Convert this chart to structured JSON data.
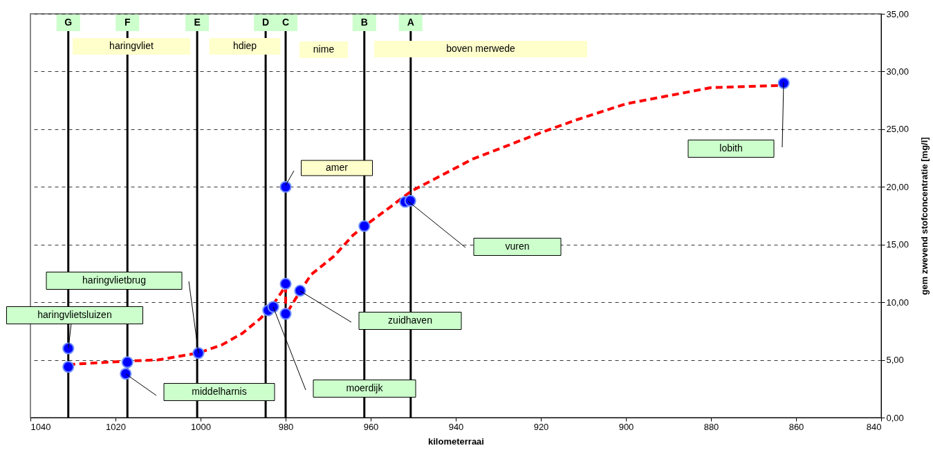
{
  "chart_data": {
    "type": "scatter",
    "xlabel": "kilometerraai",
    "ylabel": "gem zwevend stofconcentratie [mg/l]",
    "xlim": [
      1040,
      840
    ],
    "xticks": [
      1040,
      1020,
      1000,
      980,
      960,
      940,
      920,
      900,
      880,
      860,
      840
    ],
    "ylim": [
      0,
      35
    ],
    "yticks": [
      {
        "value": 0,
        "label": "0,00"
      },
      {
        "value": 5,
        "label": "5,00"
      },
      {
        "value": 10,
        "label": "10,00"
      },
      {
        "value": 15,
        "label": "15,00"
      },
      {
        "value": 20,
        "label": "20,00"
      },
      {
        "value": 25,
        "label": "25,00"
      },
      {
        "value": 30,
        "label": "30,00"
      },
      {
        "value": 35,
        "label": "35,00"
      }
    ],
    "grid": "y",
    "series": [
      {
        "marker": "circle",
        "color": "#0000ff",
        "x": [
          1031.1,
          1031.1,
          1017.2,
          1017.6,
          1000.5,
          984.1,
          982.9,
          980,
          980,
          980,
          976.6,
          961.5,
          951.9,
          950.7,
          862.9
        ],
        "values": [
          6.0,
          4.4,
          4.8,
          3.8,
          5.6,
          9.3,
          9.6,
          11.6,
          9.0,
          20.0,
          11.0,
          16.6,
          18.7,
          18.8,
          29.0
        ]
      },
      {
        "type": "line",
        "color": "#ff0000",
        "line_style": "dashed",
        "x": [
          1031.1,
          1017.2,
          1010,
          1000.5,
          995,
          990.2,
          985.9,
          983.3,
          980,
          980,
          976.5,
          974,
          968.6,
          964.2,
          961.5,
          955.6,
          950.6,
          936.1,
          920,
          911.7,
          900,
          880,
          862.9
        ],
        "values": [
          4.6,
          4.9,
          5.0,
          5.6,
          6.3,
          7.3,
          8.6,
          9.6,
          11.4,
          8.9,
          11.0,
          12.4,
          14.0,
          15.8,
          16.6,
          18.2,
          19.6,
          22.4,
          24.7,
          25.8,
          27.2,
          28.6,
          28.8
        ]
      }
    ],
    "ref_lines": [
      {
        "axis": "x",
        "value": 1031.1,
        "label": "G",
        "color": "#000000"
      },
      {
        "axis": "x",
        "value": 1017.2,
        "label": "F",
        "color": "#000000"
      },
      {
        "axis": "x",
        "value": 1000.8,
        "label": "E",
        "color": "#000000"
      },
      {
        "axis": "x",
        "value": 984.7,
        "label": "D",
        "color": "#000000"
      },
      {
        "axis": "x",
        "value": 980,
        "label": "C",
        "color": "#000000"
      },
      {
        "axis": "x",
        "value": 961.5,
        "label": "B",
        "color": "#000000"
      },
      {
        "axis": "x",
        "value": 950.6,
        "label": "A",
        "color": "#000000"
      }
    ],
    "annotations": [
      "haringvliet",
      "hdiep",
      "nime",
      "boven merwede",
      "haringvlietsluizen",
      "haringvlietbrug",
      "middelharnis",
      "moerdijk",
      "zuidhaven",
      "vuren",
      "amer",
      "lobith"
    ]
  }
}
